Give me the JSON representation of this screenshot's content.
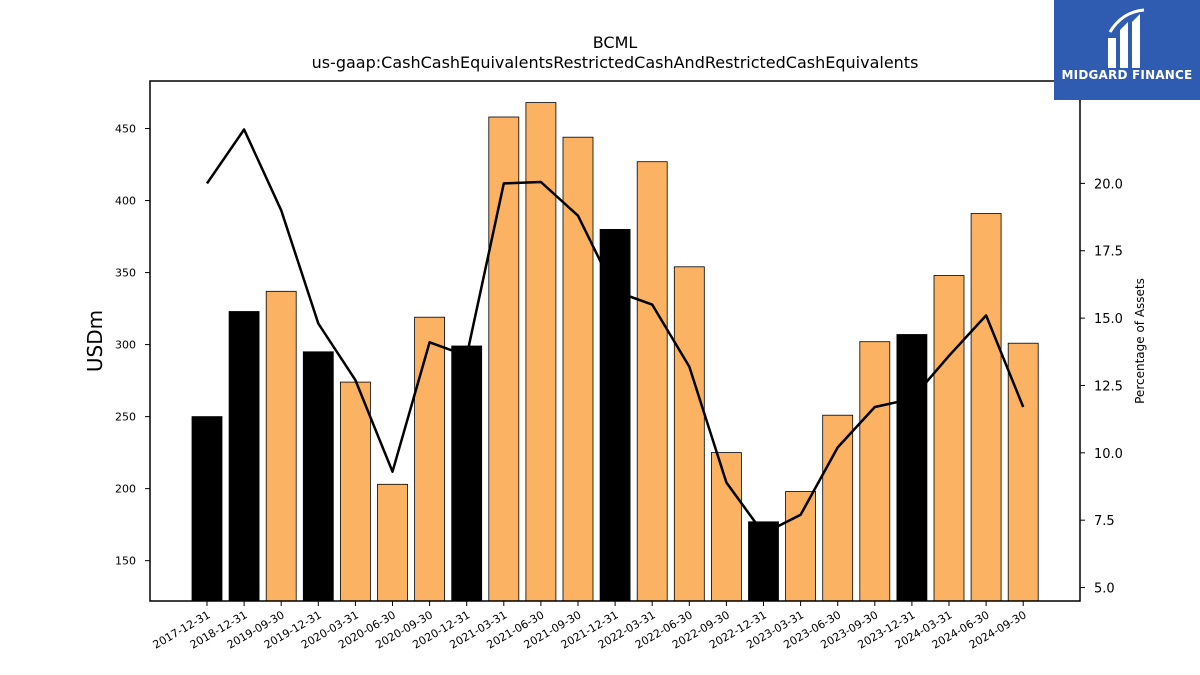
{
  "chart_data": {
    "type": "bar",
    "title": "BCML",
    "subtitle": "us-gaap:CashCashEquivalentsRestrictedCashAndRestrictedCashEquivalents",
    "ylabel": "USDm",
    "y2label": "Percentage of Assets",
    "ylim": [
      122,
      483
    ],
    "y2lim": [
      4.5,
      23.8
    ],
    "yticks": [
      150,
      200,
      250,
      300,
      350,
      400,
      450
    ],
    "y2ticks": [
      "5.0",
      "7.5",
      "10.0",
      "12.5",
      "15.0",
      "17.5",
      "20.0"
    ],
    "grid": false,
    "categories": [
      "2017-12-31",
      "2018-12-31",
      "2019-09-30",
      "2019-12-31",
      "2020-03-31",
      "2020-06-30",
      "2020-09-30",
      "2020-12-31",
      "2021-03-31",
      "2021-06-30",
      "2021-09-30",
      "2021-12-31",
      "2022-03-31",
      "2022-06-30",
      "2022-09-30",
      "2022-12-31",
      "2023-03-31",
      "2023-06-30",
      "2023-09-30",
      "2023-12-31",
      "2024-03-31",
      "2024-06-30",
      "2024-09-30"
    ],
    "series": [
      {
        "kind": "bar",
        "values": [
          250,
          323,
          337,
          295,
          274,
          203,
          319,
          299,
          458,
          468,
          444,
          380,
          427,
          354,
          225,
          177,
          198,
          251,
          302,
          307,
          348,
          391,
          301
        ],
        "highlight": [
          true,
          true,
          false,
          true,
          false,
          false,
          false,
          true,
          false,
          false,
          false,
          true,
          false,
          false,
          false,
          true,
          false,
          false,
          false,
          true,
          false,
          false,
          false
        ]
      },
      {
        "kind": "line",
        "axis": "right",
        "values": [
          20.0,
          22.0,
          19.0,
          14.8,
          12.7,
          9.3,
          14.1,
          13.6,
          20.0,
          20.05,
          18.8,
          16.0,
          15.5,
          13.2,
          8.9,
          7.0,
          7.7,
          10.2,
          11.7,
          12.0,
          13.6,
          15.1,
          11.7
        ]
      }
    ],
    "colors": {
      "bar_default": "#fbb262",
      "bar_highlight": "#000000",
      "line": "#000000"
    }
  },
  "logo": {
    "text": "MIDGARD FINANCE",
    "background": "#2f5bb0"
  }
}
